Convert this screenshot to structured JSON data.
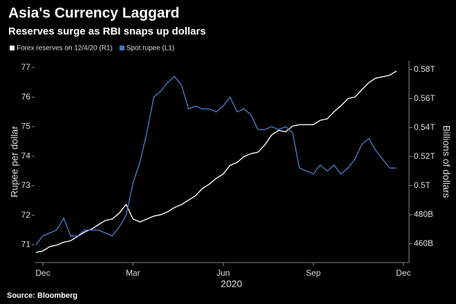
{
  "chart_data": {
    "type": "line",
    "title": "Asia's Currency Laggard",
    "subtitle": "Reserves surge as RBI snaps up dollars",
    "source": "Source: Bloomberg",
    "xlabel": "2020",
    "ylabel": "Rupee per dollar",
    "y2label": "Billions of dollars",
    "categories": [
      null,
      "Dec",
      null,
      null,
      null,
      null,
      null,
      null,
      null,
      null,
      null,
      null,
      null,
      null,
      "Mar",
      null,
      null,
      null,
      null,
      null,
      null,
      null,
      null,
      null,
      null,
      null,
      null,
      "Jun",
      null,
      null,
      null,
      null,
      null,
      null,
      null,
      null,
      null,
      null,
      null,
      null,
      "Sep",
      null,
      null,
      null,
      null,
      null,
      null,
      null,
      null,
      null,
      null,
      null,
      null,
      "Dec"
    ],
    "series": [
      {
        "name": "Forex reserves on 12/4/20 (R1)",
        "color": "#ffffff",
        "axis": "y2",
        "values": [
          454,
          455,
          458,
          459,
          461,
          462,
          465,
          468,
          470,
          473,
          476,
          477,
          481,
          487,
          477,
          475,
          477,
          479,
          480,
          482,
          485,
          487,
          490,
          493,
          498,
          501,
          505,
          508,
          514,
          516,
          520,
          522,
          523,
          528,
          535,
          538,
          537,
          541,
          542,
          542,
          542,
          545,
          546,
          551,
          555,
          560,
          561,
          566,
          571,
          574,
          575,
          576,
          579,
          null
        ]
      },
      {
        "name": "Spot rupee (L1)",
        "color": "#4a78c2",
        "values": [
          71.0,
          71.3,
          71.4,
          71.5,
          71.9,
          71.3,
          71.3,
          71.5,
          71.5,
          71.5,
          71.4,
          71.3,
          71.6,
          72.0,
          73.1,
          73.8,
          74.8,
          76.0,
          76.2,
          76.5,
          76.7,
          76.4,
          75.6,
          75.7,
          75.6,
          75.6,
          75.5,
          75.7,
          76.0,
          75.5,
          75.6,
          75.4,
          74.9,
          74.9,
          75.0,
          74.9,
          75.0,
          74.8,
          73.6,
          73.5,
          73.4,
          73.7,
          73.5,
          73.7,
          73.4,
          73.6,
          73.9,
          74.4,
          74.6,
          74.2,
          73.9,
          73.6,
          73.6,
          null
        ]
      }
    ],
    "ylim": [
      70.4,
      77.23
    ],
    "yticks": [
      71,
      72,
      73,
      74,
      75,
      76,
      77
    ],
    "y2lim": [
      447,
      586
    ],
    "y2ticks": [
      {
        "value": 460,
        "label": "460B"
      },
      {
        "value": 480,
        "label": "480B"
      },
      {
        "value": 500,
        "label": "0.5T"
      },
      {
        "value": 520,
        "label": "0.52T"
      },
      {
        "value": 540,
        "label": "0.54T"
      },
      {
        "value": 560,
        "label": "0.56T"
      },
      {
        "value": 580,
        "label": "0.58T"
      }
    ],
    "grid": false
  }
}
